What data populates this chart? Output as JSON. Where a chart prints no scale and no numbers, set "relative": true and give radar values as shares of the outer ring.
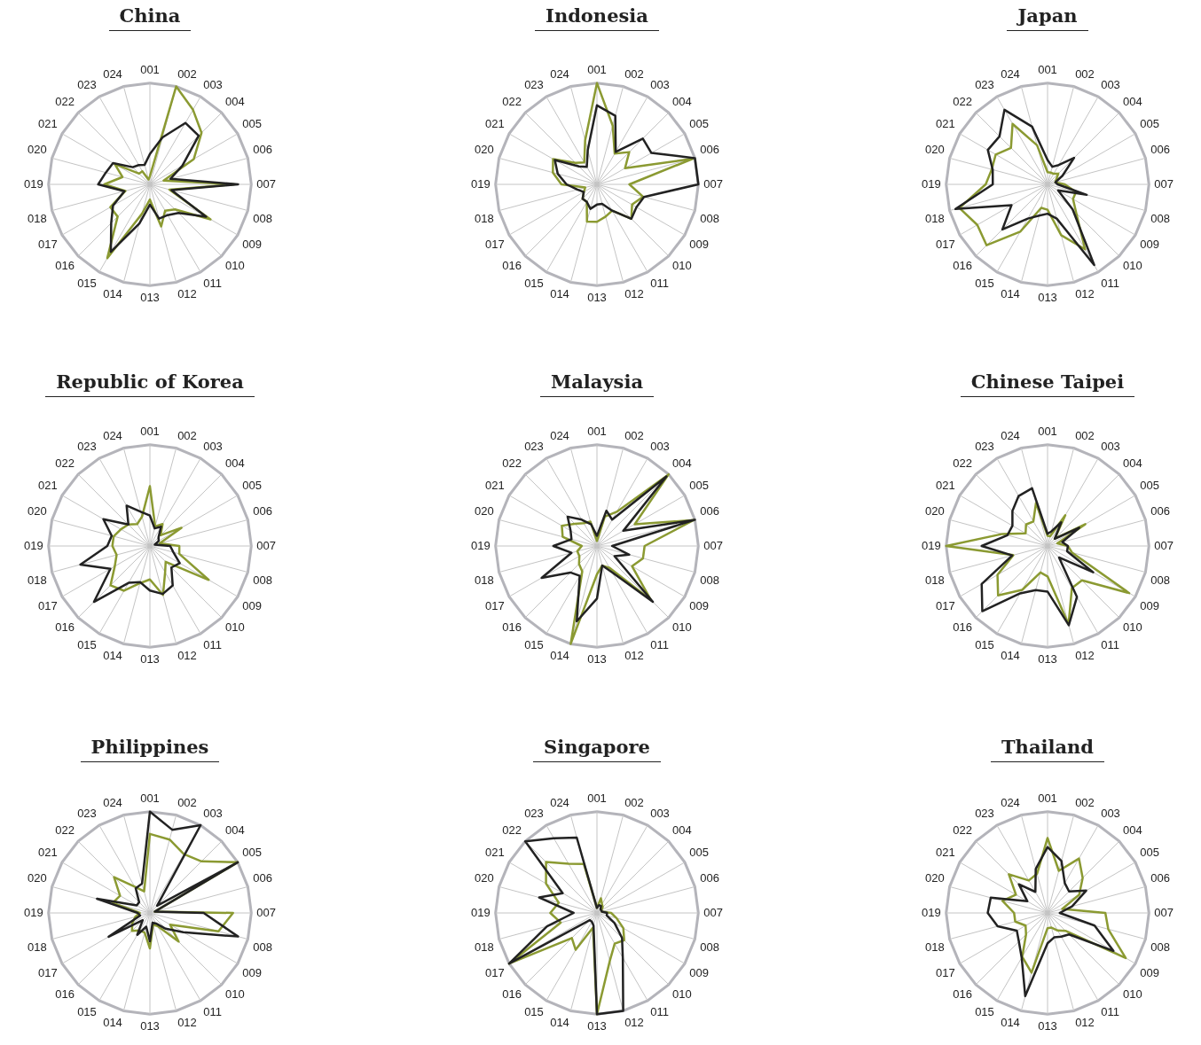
{
  "chart_data": [
    {
      "type": "radar",
      "title": "China",
      "relative": true,
      "grid": true,
      "categories": [
        "001",
        "002",
        "003",
        "004",
        "005",
        "006",
        "007",
        "008",
        "009",
        "010",
        "011",
        "012",
        "013",
        "014",
        "015",
        "016",
        "017",
        "018",
        "019",
        "020",
        "021",
        "022",
        "023",
        "024"
      ],
      "series": [
        {
          "color": "#8b9a32",
          "values": [
            0.08,
            1.0,
            0.85,
            0.72,
            0.5,
            0.14,
            0.83,
            0.2,
            0.69,
            0.35,
            0.3,
            0.43,
            0.15,
            0.3,
            0.84,
            0.45,
            0.45,
            0.25,
            0.45,
            0.28,
            0.4,
            0.15,
            0.15,
            0.05
          ]
        },
        {
          "color": "#222222",
          "values": [
            0.3,
            0.48,
            0.7,
            0.68,
            0.37,
            0.21,
            0.87,
            0.22,
            0.64,
            0.4,
            0.35,
            0.35,
            0.2,
            0.4,
            0.77,
            0.54,
            0.42,
            0.26,
            0.51,
            0.45,
            0.42,
            0.24,
            0.22,
            0.2
          ]
        }
      ]
    },
    {
      "type": "radar",
      "title": "Indonesia",
      "relative": true,
      "grid": true,
      "categories": [
        "001",
        "002",
        "003",
        "004",
        "005",
        "006",
        "007",
        "008",
        "009",
        "010",
        "011",
        "012",
        "013",
        "014",
        "015",
        "016",
        "017",
        "018",
        "019",
        "020",
        "021",
        "022",
        "023",
        "024"
      ],
      "series": [
        {
          "color": "#8b9a32",
          "values": [
            1.0,
            0.6,
            0.35,
            0.45,
            0.32,
            0.98,
            0.32,
            0.47,
            0.4,
            0.48,
            0.3,
            0.33,
            0.37,
            0.38,
            0.2,
            0.2,
            0.15,
            0.12,
            0.35,
            0.45,
            0.5,
            0.3,
            0.25,
            0.45
          ]
        },
        {
          "color": "#222222",
          "values": [
            0.78,
            0.7,
            0.37,
            0.64,
            0.62,
            1.0,
            1.0,
            0.48,
            0.45,
            0.48,
            0.3,
            0.2,
            0.2,
            0.25,
            0.2,
            0.2,
            0.15,
            0.2,
            0.3,
            0.4,
            0.48,
            0.25,
            0.2,
            0.35
          ]
        }
      ]
    },
    {
      "type": "radar",
      "title": "Japan",
      "relative": true,
      "grid": true,
      "categories": [
        "001",
        "002",
        "003",
        "004",
        "005",
        "006",
        "007",
        "008",
        "009",
        "010",
        "011",
        "012",
        "013",
        "014",
        "015",
        "016",
        "017",
        "018",
        "019",
        "020",
        "021",
        "022",
        "023",
        "024"
      ],
      "series": [
        {
          "color": "#8b9a32",
          "values": [
            0.12,
            0.12,
            0.12,
            0.15,
            0.1,
            0.08,
            0.17,
            0.29,
            0.29,
            0.4,
            0.74,
            0.52,
            0.25,
            0.24,
            0.54,
            0.85,
            0.8,
            0.9,
            0.61,
            0.57,
            0.59,
            0.51,
            0.69,
            0.4
          ]
        },
        {
          "color": "#222222",
          "values": [
            0.24,
            0.18,
            0.22,
            0.37,
            0.17,
            0.08,
            0.1,
            0.4,
            0.12,
            0.35,
            0.92,
            0.35,
            0.29,
            0.32,
            0.39,
            0.63,
            0.41,
            0.94,
            0.54,
            0.56,
            0.68,
            0.67,
            0.85,
            0.59
          ]
        }
      ]
    },
    {
      "type": "radar",
      "title": "Republic of Korea",
      "relative": true,
      "grid": true,
      "categories": [
        "001",
        "002",
        "003",
        "004",
        "005",
        "006",
        "007",
        "008",
        "009",
        "010",
        "011",
        "012",
        "013",
        "014",
        "015",
        "016",
        "017",
        "018",
        "019",
        "020",
        "021",
        "022",
        "023",
        "024"
      ],
      "series": [
        {
          "color": "#8b9a32",
          "values": [
            0.59,
            0.2,
            0.25,
            0.15,
            0.36,
            0.1,
            0.29,
            0.3,
            0.67,
            0.22,
            0.3,
            0.5,
            0.33,
            0.38,
            0.51,
            0.55,
            0.4,
            0.34,
            0.37,
            0.37,
            0.33,
            0.3,
            0.25,
            0.3
          ]
        },
        {
          "color": "#222222",
          "values": [
            0.3,
            0.18,
            0.22,
            0.12,
            0.1,
            0.05,
            0.2,
            0.24,
            0.34,
            0.3,
            0.45,
            0.49,
            0.44,
            0.37,
            0.42,
            0.78,
            0.45,
            0.71,
            0.42,
            0.39,
            0.53,
            0.3,
            0.46,
            0.35
          ]
        }
      ]
    },
    {
      "type": "radar",
      "title": "Malaysia",
      "relative": true,
      "grid": true,
      "categories": [
        "001",
        "002",
        "003",
        "004",
        "005",
        "006",
        "007",
        "008",
        "009",
        "010",
        "011",
        "012",
        "013",
        "014",
        "015",
        "016",
        "017",
        "018",
        "019",
        "020",
        "021",
        "022",
        "023",
        "024"
      ],
      "series": [
        {
          "color": "#8b9a32",
          "values": [
            0.05,
            0.3,
            0.39,
            1.0,
            0.43,
            0.99,
            0.47,
            0.47,
            0.4,
            0.75,
            0.25,
            0.2,
            0.28,
            1.0,
            0.29,
            0.25,
            0.2,
            0.2,
            0.15,
            0.35,
            0.4,
            0.31,
            0.26,
            0.25
          ]
        },
        {
          "color": "#222222",
          "values": [
            0.1,
            0.36,
            0.3,
            0.97,
            0.3,
            1.0,
            0.15,
            0.33,
            0.2,
            0.78,
            0.3,
            0.2,
            0.52,
            0.77,
            0.34,
            0.37,
            0.63,
            0.26,
            0.43,
            0.26,
            0.3,
            0.41,
            0.3,
            0.22
          ]
        }
      ]
    },
    {
      "type": "radar",
      "title": "Chinese Taipei",
      "relative": true,
      "grid": true,
      "categories": [
        "001",
        "002",
        "003",
        "004",
        "005",
        "006",
        "007",
        "008",
        "009",
        "010",
        "011",
        "012",
        "013",
        "014",
        "015",
        "016",
        "017",
        "018",
        "019",
        "020",
        "021",
        "022",
        "023",
        "024"
      ],
      "series": [
        {
          "color": "#8b9a32",
          "values": [
            0.1,
            0.1,
            0.35,
            0.1,
            0.43,
            0.1,
            0.2,
            0.25,
            0.93,
            0.48,
            0.48,
            0.8,
            0.3,
            0.27,
            0.5,
            0.69,
            0.57,
            0.35,
            1.0,
            0.46,
            0.25,
            0.3,
            0.28,
            0.44
          ]
        },
        {
          "color": "#222222",
          "values": [
            0.12,
            0.15,
            0.27,
            0.1,
            0.36,
            0.15,
            0.2,
            0.2,
            0.52,
            0.16,
            0.58,
            0.81,
            0.45,
            0.45,
            0.54,
            0.91,
            0.75,
            0.36,
            0.65,
            0.41,
            0.4,
            0.49,
            0.57,
            0.59
          ]
        }
      ]
    },
    {
      "type": "radar",
      "title": "Philippines",
      "relative": true,
      "grid": true,
      "categories": [
        "001",
        "002",
        "003",
        "004",
        "005",
        "006",
        "007",
        "008",
        "009",
        "010",
        "011",
        "012",
        "013",
        "014",
        "015",
        "016",
        "017",
        "018",
        "019",
        "020",
        "021",
        "022",
        "023",
        "024"
      ],
      "series": [
        {
          "color": "#8b9a32",
          "values": [
            0.78,
            0.75,
            0.67,
            0.72,
            1.0,
            0.05,
            0.82,
            0.7,
            0.23,
            0.4,
            0.15,
            0.12,
            0.35,
            0.2,
            0.2,
            0.25,
            0.2,
            0.15,
            0.1,
            0.38,
            0.34,
            0.5,
            0.3,
            0.22
          ]
        },
        {
          "color": "#222222",
          "values": [
            1.0,
            0.85,
            1.0,
            0.1,
            1.0,
            0.05,
            0.53,
            0.9,
            0.38,
            0.22,
            0.12,
            0.1,
            0.28,
            0.14,
            0.25,
            0.1,
            0.47,
            0.1,
            0.12,
            0.54,
            0.15,
            0.15,
            0.28,
            0.3
          ]
        }
      ]
    },
    {
      "type": "radar",
      "title": "Singapore",
      "relative": true,
      "grid": true,
      "categories": [
        "001",
        "002",
        "003",
        "004",
        "005",
        "006",
        "007",
        "008",
        "009",
        "010",
        "011",
        "012",
        "013",
        "014",
        "015",
        "016",
        "017",
        "018",
        "019",
        "020",
        "021",
        "022",
        "023",
        "024"
      ],
      "series": [
        {
          "color": "#8b9a32",
          "values": [
            0.05,
            0.15,
            0.1,
            0.08,
            0.05,
            0.05,
            0.14,
            0.2,
            0.3,
            0.38,
            0.35,
            0.49,
            1.0,
            0.15,
            0.42,
            0.35,
            1.0,
            0.37,
            0.46,
            0.39,
            0.58,
            0.71,
            0.56,
            0.5
          ]
        },
        {
          "color": "#222222",
          "values": [
            0.05,
            0.08,
            0.08,
            0.05,
            0.05,
            0.05,
            0.1,
            0.1,
            0.2,
            0.35,
            0.51,
            1.0,
            1.0,
            0.13,
            0.1,
            0.1,
            1.0,
            0.51,
            0.23,
            0.59,
            0.39,
            1.0,
            0.85,
            0.77
          ]
        }
      ]
    },
    {
      "type": "radar",
      "title": "Thailand",
      "relative": true,
      "grid": true,
      "categories": [
        "001",
        "002",
        "003",
        "004",
        "005",
        "006",
        "007",
        "008",
        "009",
        "010",
        "011",
        "012",
        "013",
        "014",
        "015",
        "016",
        "017",
        "018",
        "019",
        "020",
        "021",
        "022",
        "023",
        "024"
      ],
      "series": [
        {
          "color": "#8b9a32",
          "values": [
            0.74,
            0.43,
            0.62,
            0.49,
            0.36,
            0.15,
            0.57,
            0.62,
            0.89,
            0.25,
            0.2,
            0.15,
            0.15,
            0.61,
            0.5,
            0.3,
            0.25,
            0.33,
            0.33,
            0.46,
            0.36,
            0.54,
            0.37,
            0.4
          ]
        },
        {
          "color": "#222222",
          "values": [
            0.65,
            0.53,
            0.34,
            0.3,
            0.44,
            0.25,
            0.12,
            0.48,
            0.75,
            0.3,
            0.27,
            0.25,
            0.3,
            0.85,
            0.51,
            0.4,
            0.35,
            0.51,
            0.59,
            0.58,
            0.23,
            0.4,
            0.24,
            0.45
          ]
        }
      ]
    }
  ]
}
